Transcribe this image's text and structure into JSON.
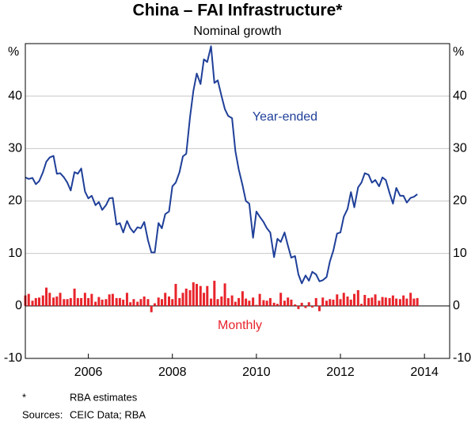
{
  "chart_data": {
    "type": "line_bar",
    "title": "China – FAI Infrastructure*",
    "subtitle": "Nominal growth",
    "y_unit": "%",
    "y2_unit": "%",
    "xlim": [
      2004.5,
      2014.6
    ],
    "xticks": [
      2006,
      2008,
      2010,
      2012,
      2014
    ],
    "ylim": [
      -10,
      50
    ],
    "yticks": [
      -10,
      0,
      10,
      20,
      30,
      40
    ],
    "y2lim": [
      -10,
      50
    ],
    "y2ticks": [
      -10,
      0,
      10,
      20,
      30,
      40
    ],
    "grid": true,
    "x": [
      2004.5,
      2004.58,
      2004.67,
      2004.75,
      2004.83,
      2004.92,
      2005,
      2005.08,
      2005.17,
      2005.25,
      2005.33,
      2005.42,
      2005.5,
      2005.58,
      2005.67,
      2005.75,
      2005.83,
      2005.92,
      2006,
      2006.08,
      2006.17,
      2006.25,
      2006.33,
      2006.42,
      2006.5,
      2006.58,
      2006.67,
      2006.75,
      2006.83,
      2006.92,
      2007,
      2007.08,
      2007.17,
      2007.25,
      2007.33,
      2007.42,
      2007.5,
      2007.58,
      2007.67,
      2007.75,
      2007.83,
      2007.92,
      2008,
      2008.08,
      2008.17,
      2008.25,
      2008.33,
      2008.42,
      2008.5,
      2008.58,
      2008.67,
      2008.75,
      2008.83,
      2008.92,
      2009,
      2009.08,
      2009.17,
      2009.25,
      2009.33,
      2009.42,
      2009.5,
      2009.58,
      2009.67,
      2009.75,
      2009.83,
      2009.92,
      2010,
      2010.08,
      2010.17,
      2010.25,
      2010.33,
      2010.42,
      2010.5,
      2010.58,
      2010.67,
      2010.75,
      2010.83,
      2010.92,
      2011,
      2011.08,
      2011.17,
      2011.25,
      2011.33,
      2011.42,
      2011.5,
      2011.58,
      2011.67,
      2011.75,
      2011.83,
      2011.92,
      2012,
      2012.08,
      2012.17,
      2012.25,
      2012.33,
      2012.42,
      2012.5,
      2012.58,
      2012.67,
      2012.75,
      2012.83,
      2012.92,
      2013,
      2013.08,
      2013.17,
      2013.25,
      2013.33,
      2013.42,
      2013.5,
      2013.58,
      2013.67,
      2013.75,
      2013.83
    ],
    "series": [
      {
        "name": "Year-ended",
        "kind": "line",
        "color": "#1f3f99",
        "values": [
          24.5,
          24.2,
          24.4,
          23.2,
          23.8,
          25.5,
          27.5,
          28.3,
          28.6,
          25.2,
          25.3,
          24.5,
          23.5,
          22,
          25.5,
          25.2,
          26.2,
          21.8,
          20.5,
          21,
          19.2,
          19.8,
          18.3,
          19.2,
          20.5,
          20.6,
          15.5,
          15.8,
          14,
          16.2,
          14.8,
          14,
          15,
          14.8,
          16,
          12.5,
          10.2,
          10.2,
          15.8,
          14.8,
          17.5,
          18,
          22.8,
          23.5,
          25.5,
          28.5,
          29,
          36,
          41,
          44.3,
          42.3,
          47,
          46.5,
          49.5,
          42.5,
          43,
          40,
          37.5,
          36.2,
          35.8,
          29.5,
          26,
          23,
          20,
          19.5,
          13,
          18,
          17,
          16,
          14.8,
          14,
          9.3,
          12.8,
          12.2,
          14,
          11.5,
          9.2,
          9.5,
          6,
          4.3,
          5.8,
          4.8,
          6.5,
          6,
          4.7,
          4.9,
          5.5,
          8.5,
          10.5,
          13.8,
          14,
          17,
          18.5,
          21.7,
          18.8,
          22.6,
          23.5,
          25.3,
          25,
          23.5,
          24,
          22.8,
          24.5,
          24,
          21.5,
          19.5,
          22.5,
          21,
          21,
          19.7,
          20.6,
          20.8,
          21.3
        ]
      },
      {
        "name": "Monthly",
        "kind": "bar",
        "color": "#e8242b",
        "values": [
          2,
          2.3,
          1,
          1.5,
          1.6,
          2,
          3.5,
          2.5,
          1.6,
          1.8,
          2.5,
          1.3,
          1.3,
          1.5,
          3.3,
          1.5,
          1.5,
          2.5,
          1.5,
          2.3,
          0.8,
          1.7,
          1.2,
          1.3,
          2.2,
          2.3,
          1.5,
          1.5,
          1.2,
          2.5,
          0.7,
          1.3,
          0.8,
          1.3,
          1.8,
          1.3,
          -1.2,
          0.5,
          1.6,
          1.3,
          2.5,
          1.8,
          1.3,
          4.2,
          1.5,
          2.5,
          3.3,
          3,
          4.5,
          4.2,
          3.8,
          2.5,
          3.8,
          1.4,
          4.8,
          1.3,
          1.8,
          4.3,
          1.5,
          2,
          0.8,
          1.5,
          2.8,
          1.4,
          1,
          1.6,
          0.2,
          2.3,
          1.1,
          1,
          1.5,
          0.6,
          0.4,
          2.5,
          1,
          1.6,
          1.2,
          0.3,
          -0.6,
          0.6,
          -0.4,
          0.7,
          -0.3,
          1.5,
          -1,
          1.6,
          1,
          1.3,
          1.2,
          2.2,
          1.3,
          2.5,
          1.8,
          1.2,
          2.3,
          3,
          0.4,
          2.1,
          1.5,
          1.6,
          2.2,
          1,
          1.7,
          1.6,
          1.5,
          2,
          1.4,
          1.3,
          2,
          1.4,
          2.5,
          1.4,
          1.5
        ]
      }
    ],
    "notes": [
      {
        "mark": "*",
        "text": "RBA estimates"
      }
    ],
    "sources": {
      "label": "Sources:",
      "text": "CEIC Data; RBA"
    }
  }
}
